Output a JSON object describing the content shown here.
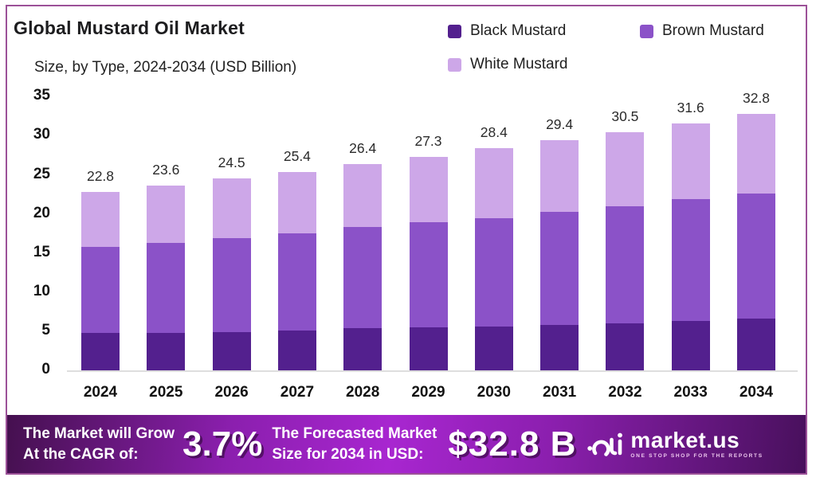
{
  "header": {
    "title": "Global Mustard Oil Market",
    "subtitle": "Size, by Type, 2024-2034 (USD Billion)"
  },
  "legend": [
    {
      "label": "Black Mustard",
      "color": "#53208e"
    },
    {
      "label": "Brown Mustard",
      "color": "#8b52c8"
    },
    {
      "label": "White Mustard",
      "color": "#cda7e8"
    }
  ],
  "chart_data": {
    "type": "bar",
    "stacked": true,
    "title": "Global Mustard Oil Market Size, by Type, 2024-2034 (USD Billion)",
    "categories": [
      "2024",
      "2025",
      "2026",
      "2027",
      "2028",
      "2029",
      "2030",
      "2031",
      "2032",
      "2033",
      "2034"
    ],
    "series": [
      {
        "name": "Black Mustard",
        "color": "#53208e",
        "values": [
          4.8,
          4.8,
          4.9,
          5.1,
          5.4,
          5.5,
          5.6,
          5.8,
          6.0,
          6.3,
          6.6
        ]
      },
      {
        "name": "Brown Mustard",
        "color": "#8b52c8",
        "values": [
          11.0,
          11.5,
          12.0,
          12.4,
          12.9,
          13.4,
          13.9,
          14.5,
          15.0,
          15.6,
          16.0
        ]
      },
      {
        "name": "White Mustard",
        "color": "#cda7e8",
        "values": [
          7.0,
          7.3,
          7.6,
          7.9,
          8.1,
          8.4,
          8.9,
          9.1,
          9.5,
          9.7,
          10.2
        ]
      }
    ],
    "totals": [
      22.8,
      23.6,
      24.5,
      25.4,
      26.4,
      27.3,
      28.4,
      29.4,
      30.5,
      31.6,
      32.8
    ],
    "xlabel": "",
    "ylabel": "",
    "ylim": [
      0,
      35
    ],
    "yticks": [
      0,
      5,
      10,
      15,
      20,
      25,
      30,
      35
    ],
    "grid": false,
    "legend_position": "top-right"
  },
  "footer": {
    "cagr_label_line1": "The Market will Grow",
    "cagr_label_line2": "At the CAGR of:",
    "cagr_value": "3.7%",
    "forecast_label_line1": "The Forecasted Market",
    "forecast_label_line2": "Size for 2034 in USD:",
    "forecast_value": "$32.8 B",
    "brand": {
      "name": "market.us",
      "tagline": "ONE STOP SHOP FOR THE REPORTS"
    }
  },
  "colors": {
    "frame_border": "#9c5198",
    "axis_line": "#dedede",
    "footer_gradient": [
      "#45104f",
      "#8b1fae",
      "#a826d0",
      "#48105c"
    ]
  }
}
